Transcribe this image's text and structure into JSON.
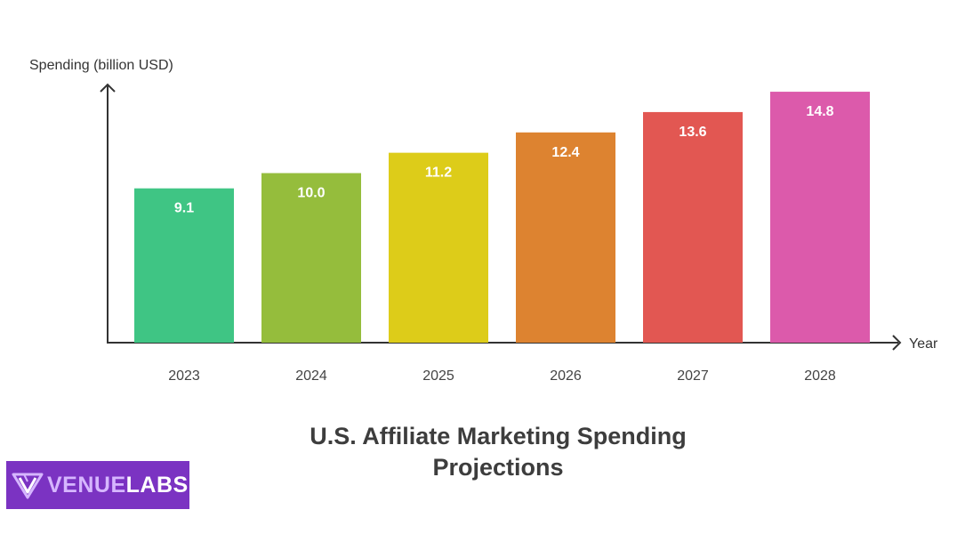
{
  "chart_data": {
    "type": "bar",
    "title": "U.S. Affiliate Marketing Spending Projections",
    "xlabel": "Year",
    "ylabel": "Spending (billion USD)",
    "categories": [
      "2023",
      "2024",
      "2025",
      "2026",
      "2027",
      "2028"
    ],
    "values": [
      9.1,
      10.0,
      11.2,
      12.4,
      13.6,
      14.8
    ],
    "value_labels": [
      "9.1",
      "10.0",
      "11.2",
      "12.4",
      "13.6",
      "14.8"
    ],
    "colors": [
      "#3fc584",
      "#95bd3c",
      "#ddcc19",
      "#dd8330",
      "#e25752",
      "#dc5aab"
    ],
    "grid": false,
    "legend": "none"
  },
  "logo": {
    "part1": "VENUE",
    "part2": "LABS",
    "colors": {
      "background": "#7b33c2",
      "part1": "#d6b6ff",
      "part2": "#ffffff"
    }
  }
}
